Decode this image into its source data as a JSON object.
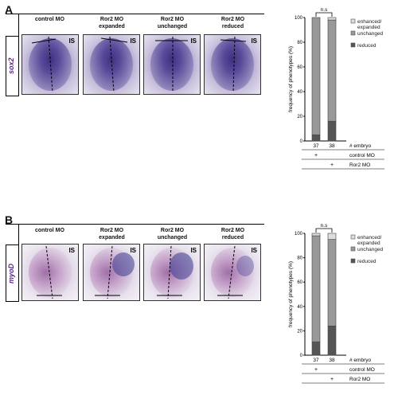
{
  "panels": [
    {
      "letter": "A",
      "gene": "sox2",
      "columns": [
        "control MO",
        "Ror2 MO\nexpanded",
        "Ror2 MO\nunchanged",
        "Ror2 MO\nreduced"
      ],
      "is_label": "IS",
      "chart": {
        "ylabel": "frequency of phenotypes (%)",
        "yticks": [
          "0",
          "20",
          "40",
          "60",
          "80",
          "100"
        ],
        "legend": [
          "enhanced/\nexpanded",
          "unchanged",
          "reduced"
        ],
        "ns_label": "n.s",
        "embryo_label": "# embryo",
        "embryo_counts": [
          "37",
          "38"
        ],
        "conditions": [
          {
            "name": "control MO",
            "marks": [
              "+",
              ""
            ]
          },
          {
            "name": "Ror2 MO",
            "marks": [
              "",
              "+"
            ]
          }
        ]
      }
    },
    {
      "letter": "B",
      "gene": "myoD",
      "columns": [
        "control MO",
        "Ror2 MO\nexpanded",
        "Ror2 MO\nunchanged",
        "Ror2 MO\nreduced"
      ],
      "is_label": "IS",
      "chart": {
        "ylabel": "frequency of phenotypes (%)",
        "yticks": [
          "0",
          "20",
          "40",
          "60",
          "80",
          "100"
        ],
        "legend": [
          "enhanced/\nexpanded",
          "unchanged",
          "reduced"
        ],
        "ns_label": "n.s",
        "embryo_label": "# embryo",
        "embryo_counts": [
          "37",
          "38"
        ],
        "conditions": [
          {
            "name": "control MO",
            "marks": [
              "+",
              ""
            ]
          },
          {
            "name": "Ror2 MO",
            "marks": [
              "",
              "+"
            ]
          }
        ]
      }
    }
  ],
  "chart_data": [
    {
      "type": "bar",
      "stacked": true,
      "categories": [
        "control MO",
        "Ror2 MO"
      ],
      "ylabel": "frequency of phenotypes (%)",
      "ylim": [
        0,
        100
      ],
      "series": [
        {
          "name": "reduced",
          "values": [
            5,
            16
          ],
          "color": "#555555"
        },
        {
          "name": "unchanged",
          "values": [
            95,
            82
          ],
          "color": "#999999"
        },
        {
          "name": "enhanced/ expanded",
          "values": [
            0,
            2
          ],
          "color": "#dddddd"
        }
      ],
      "legend": "right"
    },
    {
      "type": "bar",
      "stacked": true,
      "categories": [
        "control MO",
        "Ror2 MO"
      ],
      "ylabel": "frequency of phenotypes (%)",
      "ylim": [
        0,
        100
      ],
      "series": [
        {
          "name": "reduced",
          "values": [
            11,
            24
          ],
          "color": "#555555"
        },
        {
          "name": "unchanged",
          "values": [
            87,
            71
          ],
          "color": "#999999"
        },
        {
          "name": "enhanced/ expanded",
          "values": [
            2,
            5
          ],
          "color": "#dddddd"
        }
      ],
      "legend": "right"
    }
  ]
}
